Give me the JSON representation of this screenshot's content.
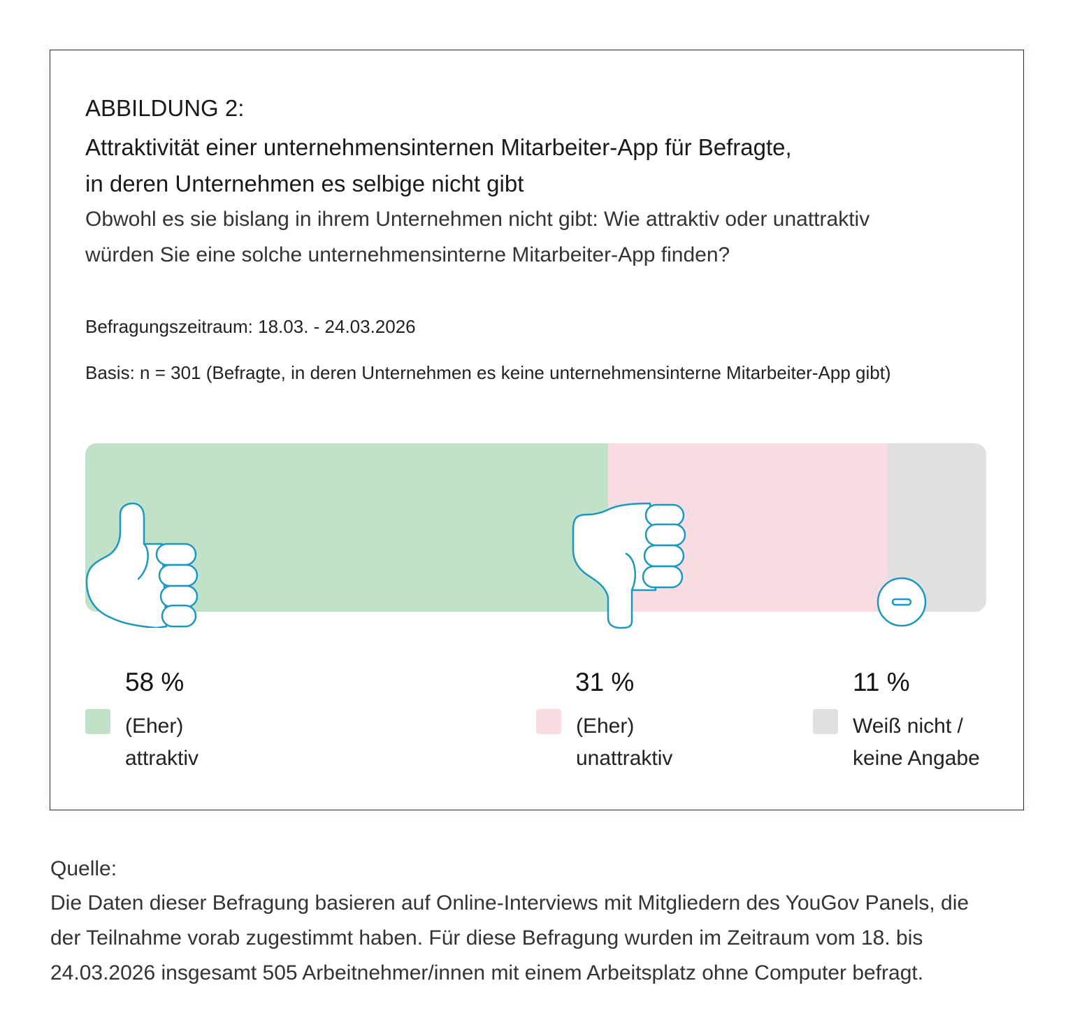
{
  "header": {
    "figure_label": "ABBILDUNG 2:",
    "title_line1": "Attraktivität einer unternehmensinternen Mitarbeiter-App für Befragte,",
    "title_line2": "in deren Unternehmen es selbige nicht gibt",
    "question_line1": "Obwohl es sie bislang in ihrem Unternehmen nicht gibt: Wie attraktiv oder unattraktiv",
    "question_line2": "würden Sie eine solche unternehmensinterne Mitarbeiter-App finden?",
    "period": "Befragungszeitraum: 18.03. - 24.03.2026",
    "basis": "Basis: n = 301 (Befragte, in deren Unternehmen es keine unternehmensinterne Mitarbeiter-App gibt)"
  },
  "chart_data": {
    "type": "bar",
    "stacked": true,
    "orientation": "horizontal",
    "unit": "%",
    "categories": [
      "(Eher) attraktiv",
      "(Eher) unattraktiv",
      "Weiß nicht / keine Angabe"
    ],
    "values": [
      58,
      31,
      11
    ],
    "value_labels": [
      "58 %",
      "31 %",
      "11 %"
    ],
    "legend_lines": [
      [
        "(Eher)",
        "attraktiv"
      ],
      [
        "(Eher)",
        "unattraktiv"
      ],
      [
        "Weiß nicht /",
        "keine Angabe"
      ]
    ],
    "colors": [
      "#c2e1c9",
      "#fadde2",
      "#e0e0e0"
    ],
    "icons": [
      "thumbs-up-icon",
      "thumbs-down-icon",
      "minus-circle-icon"
    ],
    "icon_color": "#1a98c2"
  },
  "source": {
    "heading": "Quelle:",
    "line1": "Die Daten dieser Befragung basieren auf Online-Interviews mit Mitgliedern des YouGov Panels, die",
    "line2": "der Teilnahme vorab zugestimmt haben. Für diese Befragung wurden im Zeitraum vom 18. bis",
    "line3": "24.03.2026 insgesamt 505 Arbeitnehmer/innen mit einem Arbeitsplatz ohne Computer befragt."
  }
}
